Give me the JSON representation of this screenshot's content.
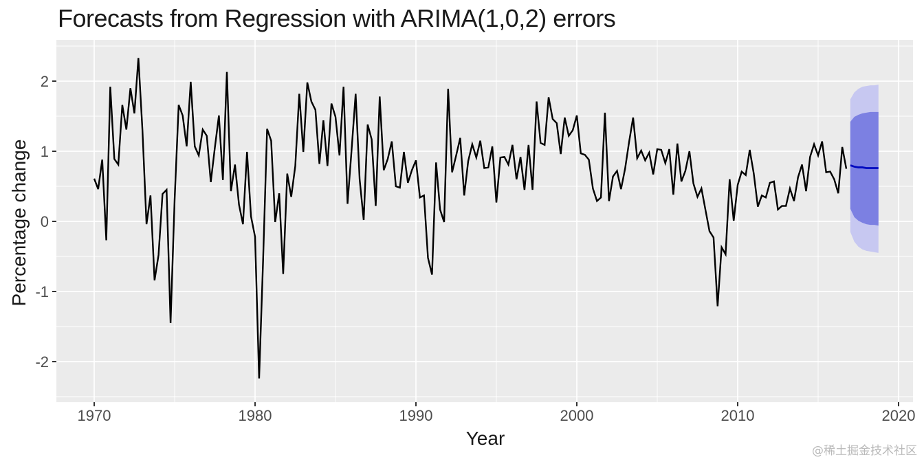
{
  "title": "Forecasts from Regression with ARIMA(1,0,2) errors",
  "xlabel": "Year",
  "ylabel": "Percentage change",
  "watermark": "@稀土掘金技术社区",
  "chart_data": {
    "type": "line",
    "title": "Forecasts from Regression with ARIMA(1,0,2) errors",
    "xlabel": "Year",
    "ylabel": "Percentage change",
    "xlim": [
      1967.6,
      2020.9
    ],
    "ylim": [
      -2.58,
      2.59
    ],
    "grid": true,
    "legend": false,
    "x_ticks": [
      1970,
      1980,
      1990,
      2000,
      2010,
      2020
    ],
    "x_tick_labels": [
      "1970",
      "1980",
      "1990",
      "2000",
      "2010",
      "2020"
    ],
    "x_minor": [
      1975,
      1985,
      1995,
      2005,
      2015
    ],
    "y_ticks": [
      -2,
      -1,
      0,
      1,
      2
    ],
    "y_tick_labels": [
      "-2",
      "-1",
      "0",
      "1",
      "2"
    ],
    "y_minor": [
      -2.5,
      -1.5,
      -0.5,
      0.5,
      1.5,
      2.5
    ],
    "series": [
      {
        "name": "observed",
        "x_start": 1970.0,
        "x_step": 0.25,
        "values": [
          0.61,
          0.46,
          0.88,
          -0.27,
          1.92,
          0.89,
          0.81,
          1.66,
          1.31,
          1.9,
          1.54,
          2.33,
          1.3,
          -0.04,
          0.37,
          -0.84,
          -0.48,
          0.39,
          0.45,
          -1.45,
          0.31,
          1.66,
          1.51,
          1.07,
          1.99,
          1.07,
          0.94,
          1.31,
          1.22,
          0.56,
          1.05,
          1.51,
          0.59,
          2.13,
          0.43,
          0.81,
          0.24,
          -0.04,
          0.99,
          0.07,
          -0.22,
          -2.24,
          -0.55,
          1.32,
          1.15,
          -0.01,
          0.4,
          -0.75,
          0.68,
          0.35,
          0.79,
          1.82,
          0.99,
          1.98,
          1.71,
          1.59,
          0.82,
          1.44,
          0.79,
          1.68,
          1.49,
          0.94,
          1.92,
          0.25,
          1.02,
          1.82,
          0.6,
          0.02,
          1.38,
          1.17,
          0.22,
          1.78,
          0.73,
          0.89,
          1.14,
          0.5,
          0.48,
          0.99,
          0.55,
          0.73,
          0.87,
          0.34,
          0.37,
          -0.52,
          -0.76,
          0.84,
          0.17,
          -0.01,
          1.89,
          0.7,
          0.94,
          1.19,
          0.37,
          0.86,
          1.1,
          0.91,
          1.15,
          0.76,
          0.77,
          1.07,
          0.27,
          0.91,
          0.92,
          0.81,
          1.09,
          0.6,
          0.92,
          0.45,
          1.09,
          0.45,
          1.71,
          1.12,
          1.09,
          1.77,
          1.46,
          1.4,
          0.96,
          1.48,
          1.22,
          1.3,
          1.51,
          0.97,
          0.95,
          0.88,
          0.47,
          0.29,
          0.34,
          1.55,
          0.29,
          0.64,
          0.72,
          0.46,
          0.75,
          1.13,
          1.48,
          0.9,
          1.01,
          0.87,
          0.98,
          0.67,
          1.03,
          1.02,
          0.83,
          1.03,
          0.38,
          1.11,
          0.57,
          0.72,
          1.0,
          0.54,
          0.35,
          0.47,
          0.16,
          -0.14,
          -0.23,
          -1.21,
          -0.37,
          -0.47,
          0.6,
          0.01,
          0.52,
          0.71,
          0.66,
          1.02,
          0.68,
          0.21,
          0.37,
          0.34,
          0.55,
          0.57,
          0.17,
          0.22,
          0.22,
          0.47,
          0.29,
          0.63,
          0.81,
          0.43,
          0.92,
          1.1,
          0.94,
          1.14,
          0.7,
          0.71,
          0.6,
          0.4,
          1.06,
          0.75
        ]
      }
    ],
    "forecast": {
      "x_start": 2017.0,
      "x_step": 0.25,
      "mean": [
        0.8,
        0.78,
        0.77,
        0.77,
        0.76,
        0.76,
        0.76,
        0.76
      ],
      "hi80": [
        1.42,
        1.49,
        1.52,
        1.54,
        1.55,
        1.56,
        1.56,
        1.56
      ],
      "lo80": [
        0.18,
        0.06,
        0.01,
        -0.02,
        -0.04,
        -0.05,
        -0.05,
        -0.06
      ],
      "hi95": [
        1.74,
        1.84,
        1.89,
        1.92,
        1.93,
        1.94,
        1.94,
        1.95
      ],
      "lo95": [
        -0.15,
        -0.29,
        -0.36,
        -0.4,
        -0.42,
        -0.43,
        -0.44,
        -0.45
      ]
    },
    "colors": {
      "panel_background": "#EBEBEB",
      "gridline": "#FFFFFF",
      "series_line": "#000000",
      "forecast_mean_line": "#0008C0",
      "band_80": "#7C80E2",
      "band_95": "#C7C8F1",
      "tick_mark": "#333333",
      "axis_text": "#4D4D4D",
      "title_text": "#1A1A1A",
      "watermark_text": "#BABABA"
    }
  }
}
